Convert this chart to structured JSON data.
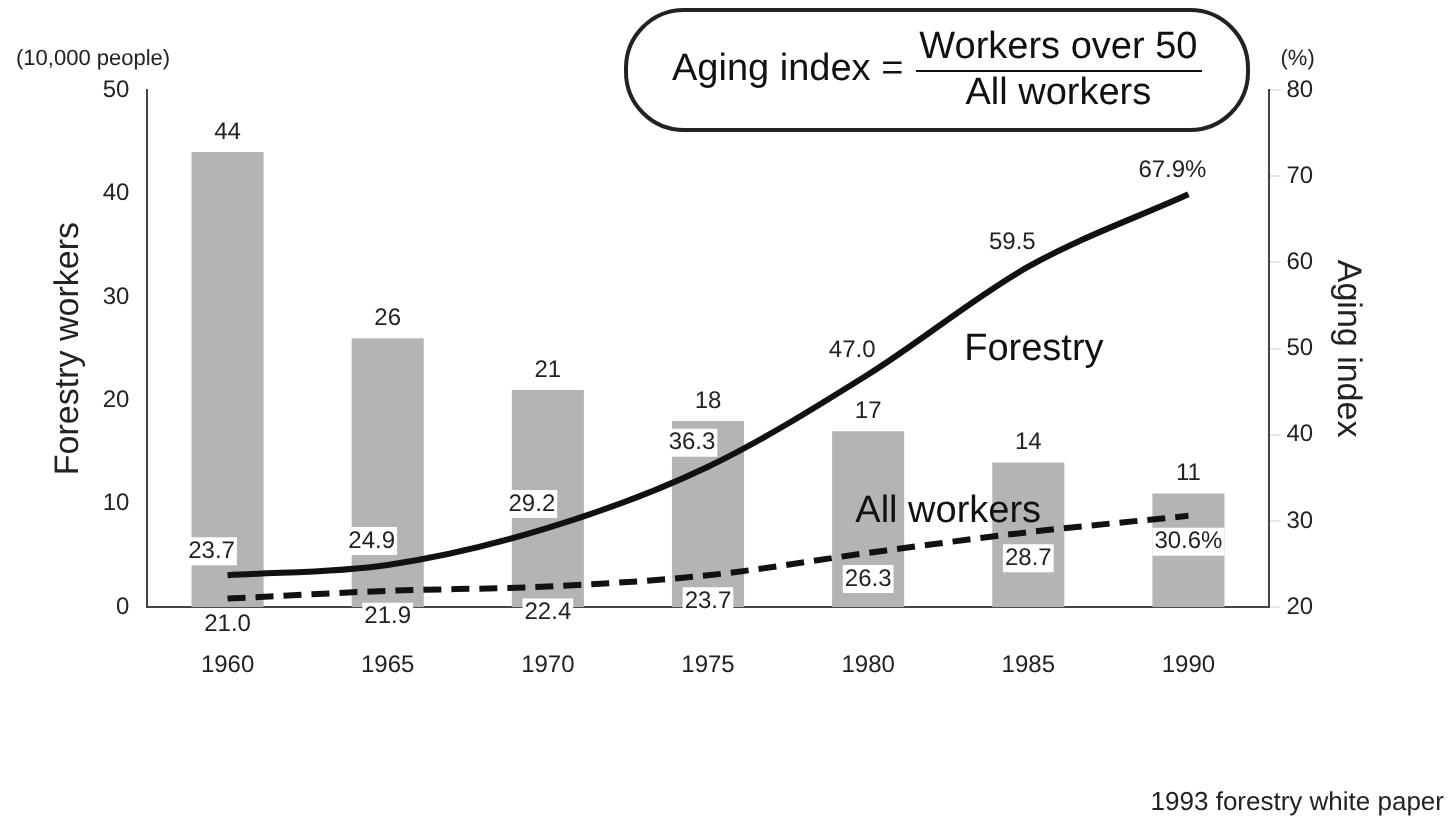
{
  "chart_data": {
    "type": "bar",
    "categories": [
      "1960",
      "1965",
      "1970",
      "1975",
      "1980",
      "1985",
      "1990"
    ],
    "ylabel": "Forestry workers",
    "y2label": "Aging index",
    "ylim": [
      0,
      50
    ],
    "yticks": [
      0,
      10,
      20,
      30,
      40,
      50
    ],
    "y2lim": [
      20,
      80
    ],
    "y2ticks": [
      20,
      30,
      40,
      50,
      60,
      70,
      80
    ],
    "series": [
      {
        "color": "#b4b4b4",
        "values": [
          44,
          26,
          21,
          18,
          17,
          14,
          11
        ],
        "value_labels": [
          "44",
          "26",
          "21",
          "18",
          "17",
          "14",
          "11"
        ]
      },
      {
        "type": "line",
        "name": "Forestry",
        "axis": "y2",
        "color": "#111111",
        "line_style": "solid",
        "values": [
          23.7,
          24.9,
          29.2,
          36.3,
          47.0,
          59.5,
          67.9
        ],
        "value_labels": [
          "23.7",
          "24.9",
          "29.2",
          "36.3",
          "47.0",
          "59.5",
          "67.9%"
        ]
      },
      {
        "type": "line",
        "name": "All workers",
        "axis": "y2",
        "color": "#111111",
        "line_style": "dashed",
        "values": [
          21.0,
          21.9,
          22.4,
          23.7,
          26.3,
          28.7,
          30.6
        ],
        "value_labels": [
          "21.0",
          "21.9",
          "22.4",
          "23.7",
          "26.3",
          "28.7",
          "30.6%"
        ]
      }
    ],
    "marker": "none",
    "legend": false,
    "grid": false,
    "annotations": [
      "(10,000 people)",
      "(%)",
      "Aging index =",
      "Workers over 50",
      "All workers",
      "1993 forestry white paper"
    ]
  }
}
